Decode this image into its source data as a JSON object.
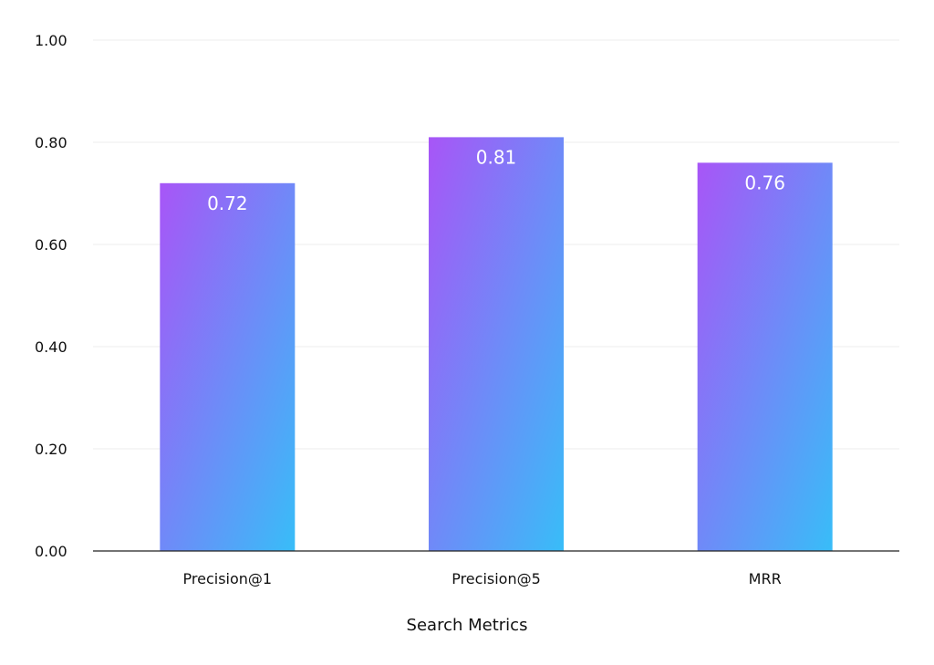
{
  "chart_data": {
    "type": "bar",
    "categories": [
      "Precision@1",
      "Precision@5",
      "MRR"
    ],
    "values": [
      0.72,
      0.81,
      0.76
    ],
    "data_labels": [
      "0.72",
      "0.81",
      "0.76"
    ],
    "xlabel": "Search Metrics",
    "ylabel": "",
    "ylim": [
      0,
      1
    ],
    "yticks": [
      0,
      0.2,
      0.4,
      0.6,
      0.8,
      1.0
    ],
    "ytick_labels": [
      "0.00",
      "0.20",
      "0.40",
      "0.60",
      "0.80",
      "1.00"
    ],
    "grid": true,
    "bar_gradient": {
      "top_left": "#a855f7",
      "bottom_right": "#38bdf8"
    },
    "colors": {
      "gridline": "#ececec",
      "axis": "#222222",
      "text": "#111111",
      "data_label": "#ffffff"
    }
  }
}
